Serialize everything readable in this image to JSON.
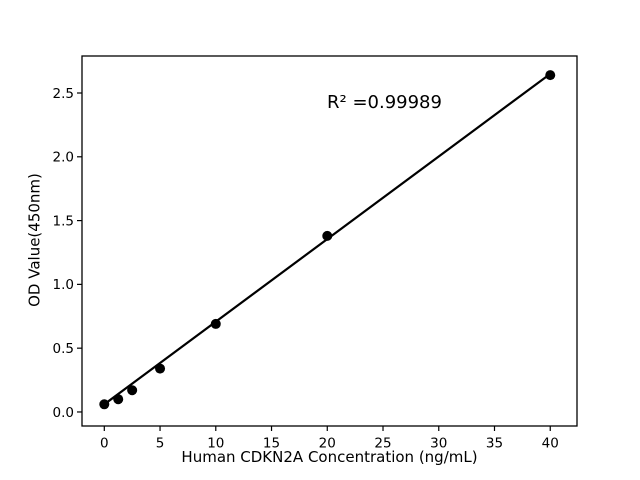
{
  "chart_data": {
    "type": "scatter",
    "title": "",
    "xlabel": "Human CDKN2A Concentration (ng/mL)",
    "ylabel": "OD Value(450nm)",
    "annotation": "R² =0.99989",
    "r_squared": 0.99989,
    "points": {
      "x": [
        0,
        1.25,
        2.5,
        5,
        10,
        20,
        40
      ],
      "y": [
        0.06,
        0.1,
        0.17,
        0.34,
        0.69,
        1.38,
        2.64
      ]
    },
    "fit_line": {
      "x": [
        0,
        40
      ],
      "y": [
        0.06,
        2.65
      ]
    },
    "xticks": {
      "values": [
        0,
        5,
        10,
        15,
        20,
        25,
        30,
        35,
        40
      ],
      "labels": [
        "0",
        "5",
        "10",
        "15",
        "20",
        "25",
        "30",
        "35",
        "40"
      ]
    },
    "yticks": {
      "values": [
        0.0,
        0.5,
        1.0,
        1.5,
        2.0,
        2.5
      ],
      "labels": [
        "0.0",
        "0.5",
        "1.0",
        "1.5",
        "2.0",
        "2.5"
      ]
    },
    "xlim": [
      -2,
      42.4
    ],
    "ylim": [
      -0.11,
      2.79
    ],
    "grid": false,
    "legend": "none",
    "colors": {
      "marker": "#000000",
      "line": "#000000",
      "axis": "#000000",
      "text": "#000000",
      "background": "#ffffff"
    }
  }
}
